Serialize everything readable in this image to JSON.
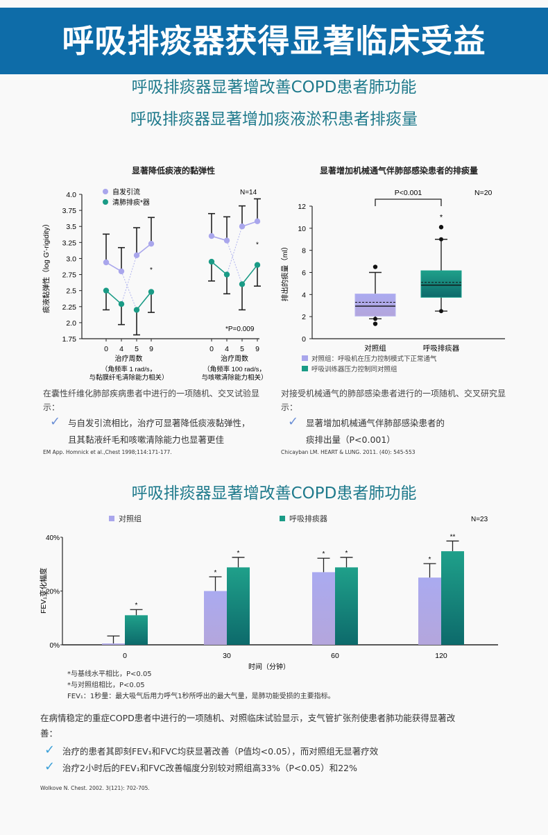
{
  "header": {
    "title": "呼吸排痰器获得显著临床受益"
  },
  "section1": {
    "title": "呼吸排痰器显著增加痰液淤积患者排痰量",
    "left": {
      "intro": "在囊性纤维化肺部疾病患者中进行的一项随机、交叉试验显示：",
      "bullet_line1": "与自发引流相比，治疗可显著降低痰液黏弹性，",
      "bullet_line2": "且其黏液纤毛和咳嗽清除能力也显著更佳",
      "reference": "EM App. Homnick et al.,Chest  1998;114:171-177."
    },
    "right": {
      "intro": "对接受机械通气的肺部感染患者进行的一项随机、交叉研究显示：",
      "bullet_line1": "显著增加机械通气伴肺部感染患者的",
      "bullet_line2": "痰排出量（P<0.001）",
      "reference": "Chicayban LM. HEART & LUNG. 2011. (40): 545-553"
    }
  },
  "section2": {
    "title": "呼吸排痰器显著增改善COPD患者肺功能",
    "notes": [
      "*与基线水平相比，P<0.05",
      "*与对照组相比，P<0.05",
      "FEV₁：1秒量：最大吸气后用力呼气1秒所呼出的最大气量，是肺功能受损的主要指标。"
    ],
    "intro": "在病情稳定的重症COPD患者中进行的一项随机、对照临床试验显示，支气管扩张剂使患者肺功能获得显著改善：",
    "bullet1": "治疗的患者其即刻FEV₁和FVC均获显著改善（P值均<0.05），而对照组无显著疗效",
    "bullet2": "治疗2小时后的FEV₁和FVC改善幅度分别较对照组高33%（P<0.05）和22%",
    "reference": "Wolkove N. Chest. 2002. 3(121): 702-705."
  },
  "icons": {
    "check": "checkmark-icon"
  },
  "colors": {
    "header": "#0e6ca8",
    "title": "#1f7a8c",
    "purple": "#a9a6ec",
    "teal": "#1a9b86",
    "teal_dark": "#0f6f6c"
  },
  "chart_data": [
    {
      "type": "line",
      "title": "显著降低痰液的黏弹性",
      "ylabel": "痰液黏弹性（log G'-rigidity）",
      "ylim": [
        1.75,
        4.0
      ],
      "yticks": [
        "4.0",
        "3.75",
        "3.5",
        "3.25",
        "3.0",
        "2.75",
        "2.5",
        "2.25",
        "2.0",
        "1.75"
      ],
      "n_label": "N=14",
      "p_label": "*P=0.009",
      "panels": [
        {
          "x": [
            "0",
            "4",
            "5",
            "9"
          ],
          "xlabel": "治疗周数",
          "sub1": "（角频率 1 rad/s，",
          "sub2": "与黏膜纤毛清除能力相关）",
          "series": [
            {
              "name": "自发引流",
              "values": [
                2.94,
                2.8,
                3.05,
                3.23
              ],
              "err_upper": [
                3.38,
                3.17,
                3.48,
                3.64
              ]
            },
            {
              "name": "清肺排痰*器",
              "values": [
                2.5,
                2.29,
                2.2,
                2.48
              ],
              "err_lower": [
                2.2,
                1.97,
                1.81,
                2.16
              ]
            }
          ],
          "star_value": 2.84
        },
        {
          "x": [
            "0",
            "4",
            "5",
            "9"
          ],
          "xlabel": "治疗周数",
          "sub1": "（角频率  100 rad/s，",
          "sub2": "与咳嗽清除能力相关）",
          "series": [
            {
              "name": "自发引流",
              "values": [
                3.35,
                3.28,
                3.5,
                3.58
              ],
              "err_upper": [
                3.7,
                3.65,
                3.82,
                3.93
              ]
            },
            {
              "name": "清肺排痰*器",
              "values": [
                2.95,
                2.75,
                2.6,
                2.9
              ],
              "err_lower": [
                2.65,
                2.45,
                2.2,
                2.57
              ]
            }
          ],
          "star_value": 3.24
        }
      ],
      "legend": [
        "自发引流",
        "清肺排痰*器"
      ]
    },
    {
      "type": "box",
      "title": "显著增加机械通气伴肺部感染患者的排痰量",
      "ylabel": "排出的痰量（ml）",
      "ylim": [
        0,
        12
      ],
      "yticks": [
        "0",
        "2",
        "4",
        "6",
        "8",
        "10",
        "12"
      ],
      "n_label": "N=20",
      "p_label": "P<0.001",
      "categories": [
        "对照组",
        "呼吸排痰器"
      ],
      "boxes": [
        {
          "q1": 2.05,
          "median": 2.95,
          "mean": 3.3,
          "q3": 4.05,
          "whisker_low": 1.8,
          "whisker_high": 6.0,
          "outliers": [
            6.5,
            1.35
          ]
        },
        {
          "q1": 3.75,
          "median": 4.85,
          "mean": 5.1,
          "q3": 6.15,
          "whisker_low": 2.5,
          "whisker_high": 9.0,
          "outliers": [
            10.1
          ],
          "star": 11.1
        }
      ],
      "legend": [
        "对照组：呼吸机在压力控制模式下正常通气",
        "呼吸训练器压力控制同对照组"
      ]
    },
    {
      "type": "bar",
      "xlabel": "时间（分钟）",
      "ylabel": "FEV₁变化幅度",
      "ylim": [
        0,
        40
      ],
      "yticks": [
        "0%",
        "20%",
        "40%"
      ],
      "n_label": "N=23",
      "categories": [
        "0",
        "30",
        "60",
        "120"
      ],
      "series": [
        {
          "name": "对照组",
          "values": [
            0.5,
            20,
            27,
            25
          ],
          "err_upper": [
            3.3,
            25.3,
            32.2,
            30.2
          ],
          "stars": [
            "",
            "*",
            "*",
            "*"
          ]
        },
        {
          "name": "呼吸排痰器",
          "values": [
            11,
            28.8,
            28.8,
            34.8
          ],
          "err_upper": [
            13.1,
            32.5,
            32.5,
            38.6
          ],
          "stars": [
            "*",
            "*",
            "*",
            "**"
          ]
        }
      ],
      "legend": "top"
    }
  ]
}
